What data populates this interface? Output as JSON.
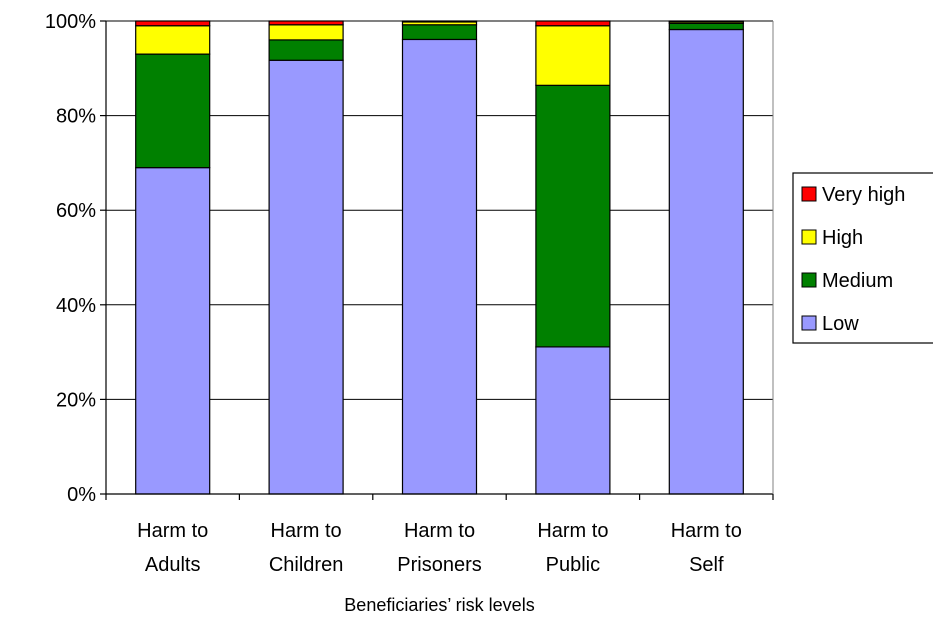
{
  "chart_data": {
    "type": "bar",
    "stacked": true,
    "percent_stacked": true,
    "categories": [
      [
        "Harm to",
        "Adults"
      ],
      [
        "Harm to",
        "Children"
      ],
      [
        "Harm to",
        "Prisoners"
      ],
      [
        "Harm to",
        "Public"
      ],
      [
        "Harm to",
        "Self"
      ]
    ],
    "series": [
      {
        "name": "Low",
        "color": "#9999FF",
        "values": [
          69,
          91.7,
          96.1,
          31.1,
          98.2
        ]
      },
      {
        "name": "Medium",
        "color": "#008000",
        "values": [
          24,
          4.3,
          3.1,
          55.3,
          1.3
        ]
      },
      {
        "name": "High",
        "color": "#FFFF00",
        "values": [
          6,
          3.2,
          0.6,
          12.6,
          0.3
        ]
      },
      {
        "name": "Very high",
        "color": "#FF0000",
        "values": [
          1,
          0.8,
          0.2,
          1,
          0.2
        ]
      }
    ],
    "legend_order": [
      "Very high",
      "High",
      "Medium",
      "Low"
    ],
    "y_ticks": [
      "0%",
      "20%",
      "40%",
      "60%",
      "80%",
      "100%"
    ],
    "ylim": [
      0,
      100
    ],
    "xlabel": "Beneficiaries’ risk levels",
    "ylabel": "",
    "title": "",
    "grid": true,
    "legend_position": "right"
  }
}
